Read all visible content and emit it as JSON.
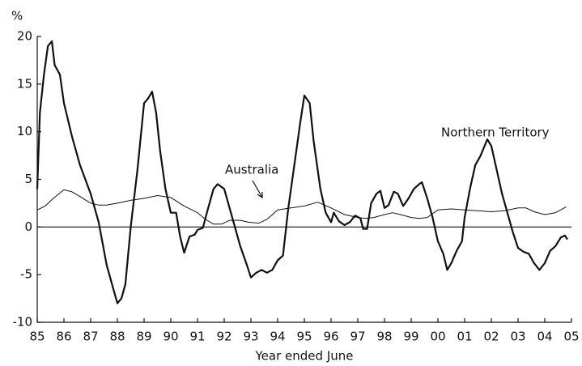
{
  "chart_data": {
    "type": "line",
    "y_unit": "%",
    "x_label": "Year ended June",
    "xlim": [
      1985,
      2005
    ],
    "ylim": [
      -10,
      20
    ],
    "yticks": [
      -10,
      -5,
      0,
      5,
      10,
      15,
      20
    ],
    "xticks": [
      {
        "value": 1985,
        "label": "85"
      },
      {
        "value": 1986,
        "label": "86"
      },
      {
        "value": 1987,
        "label": "87"
      },
      {
        "value": 1988,
        "label": "88"
      },
      {
        "value": 1989,
        "label": "89"
      },
      {
        "value": 1990,
        "label": "90"
      },
      {
        "value": 1991,
        "label": "91"
      },
      {
        "value": 1992,
        "label": "92"
      },
      {
        "value": 1993,
        "label": "93"
      },
      {
        "value": 1994,
        "label": "94"
      },
      {
        "value": 1995,
        "label": "95"
      },
      {
        "value": 1996,
        "label": "96"
      },
      {
        "value": 1997,
        "label": "97"
      },
      {
        "value": 1998,
        "label": "98"
      },
      {
        "value": 1999,
        "label": "99"
      },
      {
        "value": 2000,
        "label": "00"
      },
      {
        "value": 2001,
        "label": "01"
      },
      {
        "value": 2002,
        "label": "02"
      },
      {
        "value": 2003,
        "label": "03"
      },
      {
        "value": 2004,
        "label": "04"
      },
      {
        "value": 2005,
        "label": "05"
      }
    ],
    "series": [
      {
        "name": "Northern Territory",
        "color": "#111111",
        "x": [
          1985.0,
          1985.1,
          1985.25,
          1985.4,
          1985.55,
          1985.65,
          1985.85,
          1986.0,
          1986.3,
          1986.6,
          1987.0,
          1987.3,
          1987.6,
          1987.85,
          1988.0,
          1988.15,
          1988.3,
          1988.5,
          1988.75,
          1989.0,
          1989.15,
          1989.3,
          1989.45,
          1989.6,
          1989.8,
          1990.0,
          1990.2,
          1990.35,
          1990.5,
          1990.7,
          1990.9,
          1991.0,
          1991.2,
          1991.4,
          1991.6,
          1991.75,
          1992.0,
          1992.3,
          1992.6,
          1992.85,
          1993.0,
          1993.2,
          1993.4,
          1993.6,
          1993.8,
          1994.0,
          1994.2,
          1994.4,
          1994.6,
          1994.85,
          1995.0,
          1995.2,
          1995.35,
          1995.6,
          1995.8,
          1996.0,
          1996.1,
          1996.3,
          1996.5,
          1996.7,
          1996.9,
          1997.1,
          1997.2,
          1997.35,
          1997.5,
          1997.7,
          1997.85,
          1998.0,
          1998.15,
          1998.35,
          1998.5,
          1998.7,
          1998.9,
          1999.1,
          1999.3,
          1999.4,
          1999.6,
          1999.8,
          2000.0,
          2000.2,
          2000.35,
          2000.5,
          2000.7,
          2000.9,
          2001.0,
          2001.2,
          2001.4,
          2001.6,
          2001.85,
          2002.0,
          2002.2,
          2002.4,
          2002.6,
          2002.8,
          2003.0,
          2003.2,
          2003.4,
          2003.6,
          2003.8,
          2004.0,
          2004.2,
          2004.4,
          2004.6,
          2004.75,
          2004.85
        ],
        "values": [
          4,
          12,
          16,
          19,
          19.5,
          17,
          16,
          13,
          9.5,
          6.5,
          3.5,
          0.5,
          -4,
          -6.5,
          -8,
          -7.5,
          -6,
          0,
          6,
          13,
          13.5,
          14.2,
          12,
          8,
          4,
          1.5,
          1.5,
          -1,
          -2.7,
          -1,
          -0.8,
          -0.3,
          -0.1,
          2,
          4,
          4.5,
          4,
          1,
          -2,
          -4,
          -5.3,
          -4.8,
          -4.5,
          -4.8,
          -4.5,
          -3.5,
          -3,
          2,
          6,
          11,
          13.8,
          13,
          9,
          4,
          1.5,
          0.5,
          1.5,
          0.6,
          0.2,
          0.5,
          1.2,
          0.9,
          -0.2,
          -0.2,
          2.5,
          3.5,
          3.8,
          2,
          2.3,
          3.7,
          3.5,
          2.2,
          3,
          4,
          4.5,
          4.7,
          3,
          1,
          -1.5,
          -2.8,
          -4.5,
          -3.8,
          -2.5,
          -1.5,
          1,
          4,
          6.5,
          7.5,
          9.2,
          8.5,
          6,
          3.5,
          1.5,
          -0.5,
          -2.2,
          -2.6,
          -2.8,
          -3.8,
          -4.5,
          -3.8,
          -2.5,
          -2,
          -1.1,
          -0.9,
          -1.3
        ]
      },
      {
        "name": "Australia",
        "color": "#111111",
        "x": [
          1985.0,
          1985.3,
          1985.6,
          1986.0,
          1986.3,
          1986.6,
          1987.0,
          1987.3,
          1987.6,
          1988.0,
          1988.5,
          1989.0,
          1989.5,
          1990.0,
          1990.5,
          1991.0,
          1991.3,
          1991.6,
          1991.9,
          1992.2,
          1992.6,
          1992.9,
          1993.3,
          1993.6,
          1994.0,
          1994.5,
          1995.0,
          1995.5,
          1996.0,
          1996.5,
          1997.0,
          1997.3,
          1997.6,
          1998.0,
          1998.3,
          1998.6,
          1999.0,
          1999.3,
          1999.6,
          2000.0,
          2000.5,
          2001.0,
          2001.5,
          2002.0,
          2002.5,
          2003.0,
          2003.3,
          2003.6,
          2004.0,
          2004.4,
          2004.8
        ],
        "values": [
          1.8,
          2.2,
          3,
          3.9,
          3.7,
          3.2,
          2.5,
          2.3,
          2.3,
          2.5,
          2.8,
          3.0,
          3.3,
          3.1,
          2.2,
          1.5,
          0.8,
          0.3,
          0.3,
          0.7,
          0.7,
          0.5,
          0.4,
          0.8,
          1.8,
          2.0,
          2.2,
          2.6,
          2.0,
          1.3,
          1.0,
          0.9,
          1.0,
          1.3,
          1.5,
          1.3,
          1.0,
          0.9,
          1.0,
          1.8,
          1.9,
          1.8,
          1.7,
          1.6,
          1.7,
          2.0,
          2.0,
          1.6,
          1.3,
          1.5,
          2.1
        ]
      }
    ]
  }
}
